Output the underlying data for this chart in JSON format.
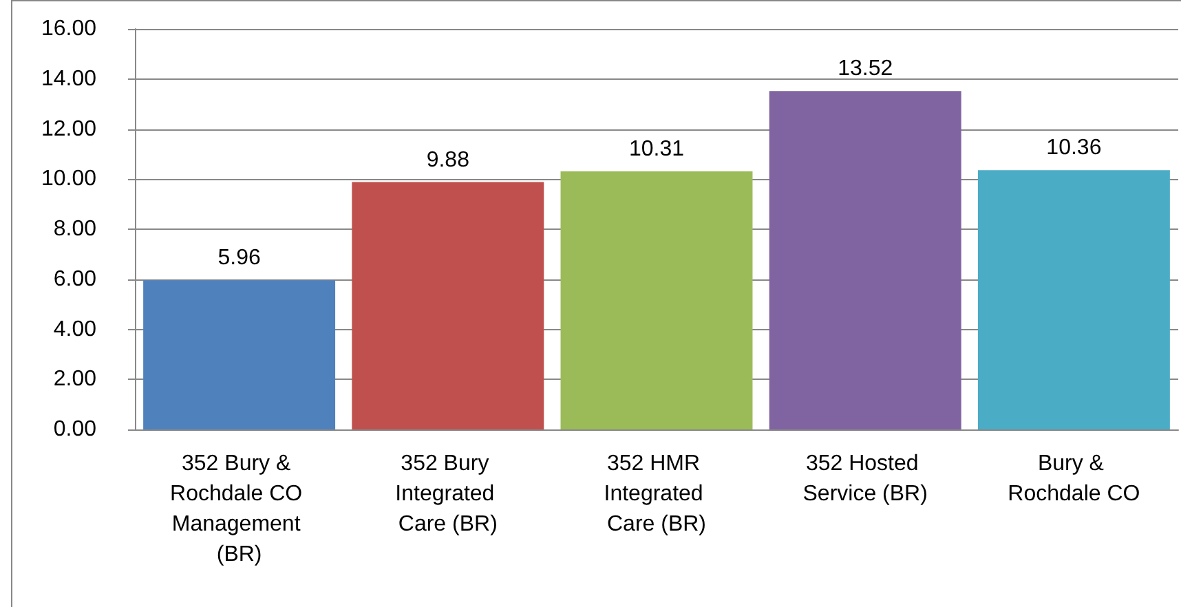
{
  "chart_data": {
    "type": "bar",
    "categories": [
      "352 Bury & Rochdale CO Management (BR)",
      "352 Bury Integrated Care (BR)",
      "352 HMR Integrated Care (BR)",
      "352 Hosted Service (BR)",
      "Bury & Rochdale CO"
    ],
    "values": [
      5.96,
      9.88,
      10.31,
      13.52,
      10.36
    ],
    "colors": [
      "#4f81bd",
      "#c0504d",
      "#9bbb59",
      "#8064a2",
      "#4bacc6"
    ],
    "ylim": [
      0,
      16
    ],
    "yticks": [
      {
        "value": 0,
        "label": "0.00"
      },
      {
        "value": 2,
        "label": "2.00"
      },
      {
        "value": 4,
        "label": "4.00"
      },
      {
        "value": 6,
        "label": "6.00"
      },
      {
        "value": 8,
        "label": "8.00"
      },
      {
        "value": 10,
        "label": "10.00"
      },
      {
        "value": 12,
        "label": "12.00"
      },
      {
        "value": 14,
        "label": "14.00"
      },
      {
        "value": 16,
        "label": "16.00"
      }
    ],
    "grid": true,
    "data_labels": true
  }
}
